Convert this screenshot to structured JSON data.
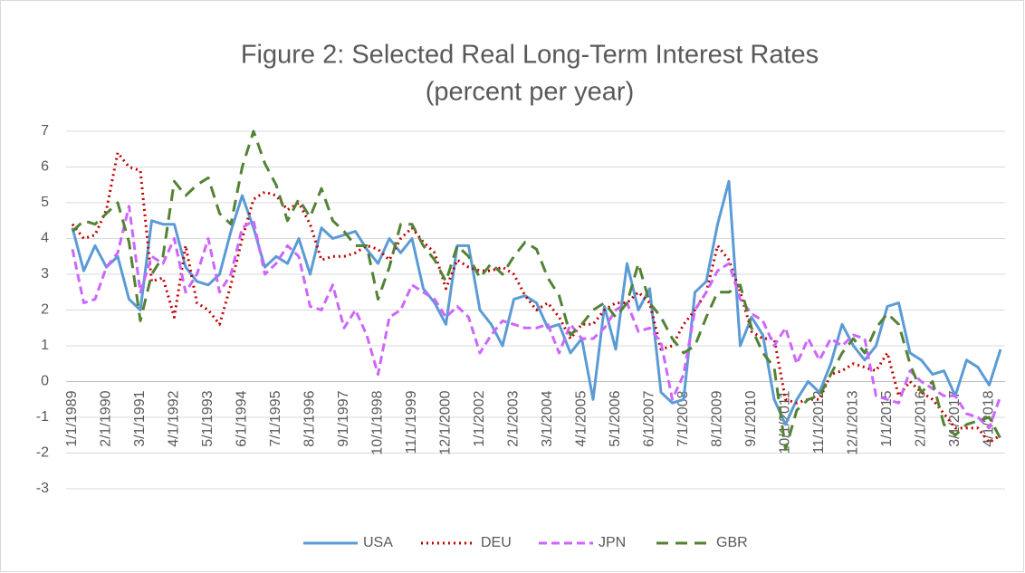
{
  "chart_data": {
    "type": "line",
    "title": "Figure 2: Selected Real Long-Term Interest Rates",
    "subtitle": "(percent per year)",
    "categories": [
      "1/1/1989",
      null,
      null,
      "2/1/1990",
      null,
      null,
      "3/1/1991",
      null,
      null,
      "4/1/1992",
      null,
      null,
      "5/1/1993",
      null,
      null,
      "6/1/1994",
      null,
      null,
      "7/1/1995",
      null,
      null,
      "8/1/1996",
      null,
      null,
      "9/1/1997",
      null,
      null,
      "10/1/1998",
      null,
      null,
      "11/1/1999",
      null,
      null,
      "12/1/2000",
      null,
      null,
      "1/1/2002",
      null,
      null,
      "2/1/2003",
      null,
      null,
      "3/1/2004",
      null,
      null,
      "4/1/2005",
      null,
      null,
      "5/1/2006",
      null,
      null,
      "6/1/2007",
      null,
      null,
      "7/1/2008",
      null,
      null,
      "8/1/2009",
      null,
      null,
      "9/1/2010",
      null,
      null,
      "10/1/2011",
      null,
      null,
      "11/1/2012",
      null,
      null,
      "12/1/2013",
      null,
      null,
      "1/1/2015",
      null,
      null,
      "2/1/2016",
      null,
      null,
      "3/1/2017",
      null,
      null,
      "4/1/2018",
      null
    ],
    "series": [
      {
        "name": "USA",
        "color": "#5b9bd5",
        "values": [
          4.3,
          3.1,
          3.8,
          3.2,
          3.5,
          2.3,
          2.0,
          4.5,
          4.4,
          4.4,
          3.2,
          2.8,
          2.7,
          3.0,
          4.2,
          5.2,
          4.3,
          3.2,
          3.5,
          3.3,
          4.0,
          3.0,
          4.3,
          4.0,
          4.1,
          4.2,
          3.7,
          3.3,
          4.0,
          3.6,
          4.0,
          2.6,
          2.2,
          1.6,
          3.8,
          3.8,
          2.0,
          1.6,
          1.0,
          2.3,
          2.4,
          2.2,
          1.5,
          1.6,
          0.8,
          1.2,
          -0.5,
          2.1,
          0.9,
          3.3,
          2.0,
          2.6,
          -0.3,
          -0.6,
          -0.5,
          2.5,
          2.8,
          4.4,
          5.6,
          1.0,
          1.8,
          1.3,
          -0.5,
          -1.2,
          -0.5,
          0.0,
          -0.3,
          0.5,
          1.6,
          1.0,
          0.6,
          1.0,
          2.1,
          2.2,
          0.8,
          0.6,
          0.2,
          0.3,
          -0.4,
          0.6,
          0.4,
          -0.1,
          0.9
        ]
      },
      {
        "name": "DEU",
        "color": "#c00000",
        "values": [
          4.4,
          4.0,
          4.1,
          4.8,
          6.4,
          6.0,
          5.9,
          2.8,
          2.9,
          1.8,
          3.8,
          2.2,
          2.0,
          1.6,
          2.7,
          4.0,
          5.1,
          5.3,
          5.2,
          4.8,
          5.0,
          4.4,
          3.4,
          3.5,
          3.5,
          3.6,
          3.8,
          3.7,
          3.4,
          4.0,
          4.3,
          3.9,
          3.6,
          2.6,
          3.4,
          3.2,
          3.1,
          3.1,
          3.2,
          3.0,
          2.4,
          2.0,
          2.2,
          1.8,
          1.2,
          1.6,
          1.6,
          2.0,
          2.2,
          2.2,
          2.5,
          2.2,
          0.9,
          1.0,
          1.6,
          2.0,
          2.5,
          3.8,
          3.4,
          2.5,
          1.4,
          1.2,
          1.2,
          -0.5,
          -0.6,
          -0.5,
          -0.5,
          0.2,
          0.3,
          0.5,
          0.4,
          0.3,
          0.8,
          -0.4,
          0.0,
          -0.3,
          -0.5,
          -0.9,
          -1.3,
          -1.3,
          -1.3,
          -1.7,
          -1.5
        ]
      },
      {
        "name": "JPN",
        "color": "#cc66ff",
        "values": [
          3.7,
          2.2,
          2.3,
          3.2,
          3.6,
          4.9,
          2.5,
          3.5,
          3.3,
          4.0,
          2.5,
          3.0,
          4.0,
          2.5,
          3.0,
          4.3,
          4.5,
          3.0,
          3.3,
          3.8,
          3.5,
          2.1,
          2.0,
          2.7,
          1.5,
          2.0,
          1.3,
          0.2,
          1.8,
          2.0,
          2.7,
          2.5,
          2.3,
          1.8,
          2.1,
          1.8,
          0.8,
          1.3,
          1.7,
          1.6,
          1.5,
          1.5,
          1.6,
          0.8,
          1.6,
          1.2,
          1.2,
          1.5,
          2.0,
          2.2,
          1.4,
          1.5,
          1.1,
          -0.5,
          0.2,
          2.0,
          2.5,
          3.1,
          3.3,
          2.3,
          1.9,
          1.7,
          1.0,
          1.5,
          0.5,
          1.2,
          0.6,
          1.2,
          1.0,
          1.3,
          1.2,
          -0.4,
          -0.5,
          -0.6,
          0.3,
          0.0,
          -0.2,
          -0.4,
          -0.4,
          -0.9,
          -1.0,
          -1.3,
          -0.4
        ]
      },
      {
        "name": "GBR",
        "color": "#548235",
        "values": [
          4.2,
          4.5,
          4.4,
          4.7,
          5.0,
          3.9,
          1.7,
          3.0,
          3.5,
          5.6,
          5.2,
          5.5,
          5.7,
          4.7,
          4.4,
          6.0,
          7.0,
          6.1,
          5.5,
          4.5,
          5.1,
          4.6,
          5.4,
          4.5,
          4.2,
          3.8,
          3.8,
          2.3,
          3.2,
          4.4,
          4.4,
          3.8,
          3.4,
          2.8,
          3.8,
          3.5,
          2.9,
          3.3,
          3.0,
          3.5,
          3.9,
          3.7,
          2.9,
          2.4,
          1.3,
          1.6,
          2.0,
          2.2,
          1.8,
          2.2,
          3.3,
          2.2,
          1.8,
          1.2,
          0.8,
          1.0,
          1.8,
          2.5,
          2.5,
          2.7,
          1.5,
          0.8,
          0.4,
          -1.9,
          -0.8,
          -0.5,
          -0.4,
          0.2,
          0.8,
          1.2,
          0.8,
          1.5,
          1.9,
          1.6,
          0.5,
          -0.3,
          0.0,
          -1.2,
          -1.5,
          -1.2,
          -1.1,
          -1.0,
          -1.6
        ]
      }
    ],
    "ylim": [
      -3,
      7
    ],
    "yticks": [
      -3,
      -2,
      -1,
      0,
      1,
      2,
      3,
      4,
      5,
      6,
      7
    ],
    "grid": true,
    "legend": "bottom"
  }
}
